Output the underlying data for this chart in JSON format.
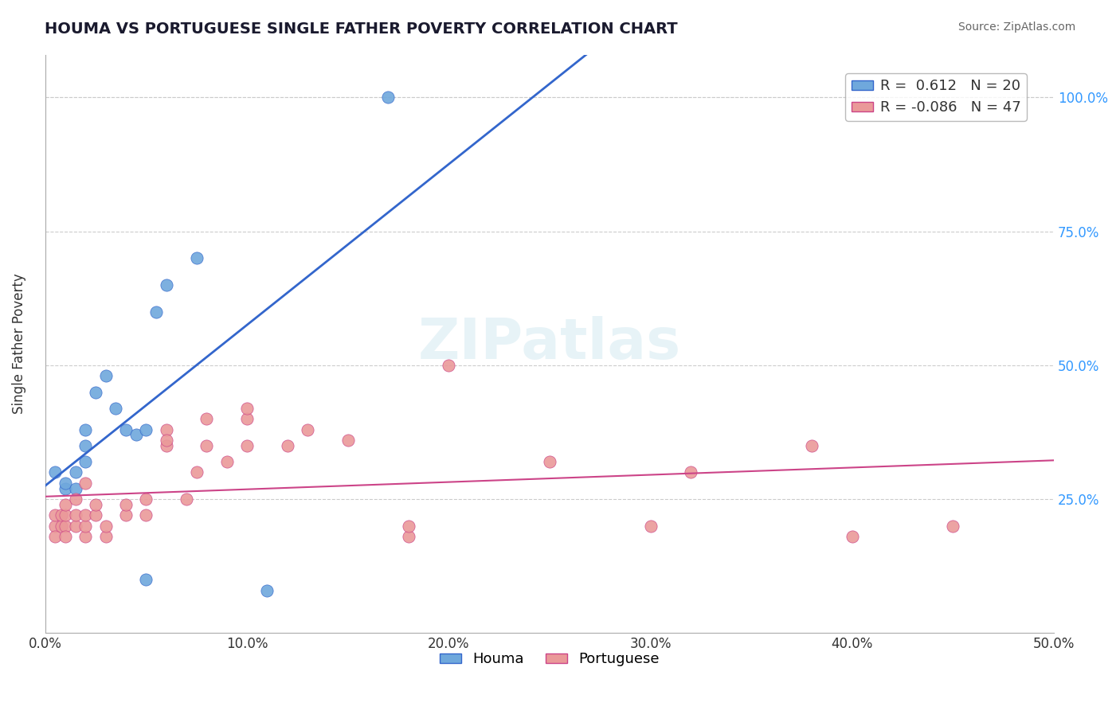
{
  "title": "HOUMA VS PORTUGUESE SINGLE FATHER POVERTY CORRELATION CHART",
  "source": "Source: ZipAtlas.com",
  "xlabel": "",
  "ylabel": "Single Father Poverty",
  "xlim": [
    0.0,
    0.5
  ],
  "ylim": [
    0.0,
    1.05
  ],
  "xtick_labels": [
    "0.0%",
    "10.0%",
    "20.0%",
    "30.0%",
    "40.0%",
    "50.0%"
  ],
  "xtick_vals": [
    0.0,
    0.1,
    0.2,
    0.3,
    0.4,
    0.5
  ],
  "ytick_labels": [
    "25.0%",
    "50.0%",
    "75.0%",
    "100.0%"
  ],
  "ytick_vals": [
    0.25,
    0.5,
    0.75,
    1.0
  ],
  "houma_r": 0.612,
  "houma_n": 20,
  "portuguese_r": -0.086,
  "portuguese_n": 47,
  "houma_color": "#6fa8dc",
  "portuguese_color": "#ea9999",
  "houma_line_color": "#3366cc",
  "portuguese_line_color": "#cc4488",
  "background_color": "#ffffff",
  "grid_color": "#cccccc",
  "watermark": "ZIPatlas",
  "houma_x": [
    0.005,
    0.01,
    0.01,
    0.015,
    0.015,
    0.02,
    0.02,
    0.02,
    0.025,
    0.03,
    0.035,
    0.04,
    0.045,
    0.05,
    0.05,
    0.055,
    0.06,
    0.075,
    0.11,
    0.17
  ],
  "houma_y": [
    0.3,
    0.27,
    0.28,
    0.27,
    0.3,
    0.32,
    0.35,
    0.38,
    0.45,
    0.48,
    0.42,
    0.38,
    0.37,
    0.38,
    0.1,
    0.6,
    0.65,
    0.7,
    0.08,
    1.0
  ],
  "portuguese_x": [
    0.005,
    0.005,
    0.005,
    0.008,
    0.008,
    0.01,
    0.01,
    0.01,
    0.01,
    0.015,
    0.015,
    0.015,
    0.02,
    0.02,
    0.02,
    0.02,
    0.025,
    0.025,
    0.03,
    0.03,
    0.04,
    0.04,
    0.05,
    0.05,
    0.06,
    0.06,
    0.06,
    0.07,
    0.075,
    0.08,
    0.08,
    0.09,
    0.1,
    0.1,
    0.1,
    0.12,
    0.13,
    0.15,
    0.18,
    0.18,
    0.2,
    0.25,
    0.3,
    0.32,
    0.38,
    0.4,
    0.45
  ],
  "portuguese_y": [
    0.2,
    0.22,
    0.18,
    0.2,
    0.22,
    0.2,
    0.18,
    0.22,
    0.24,
    0.2,
    0.22,
    0.25,
    0.18,
    0.2,
    0.22,
    0.28,
    0.22,
    0.24,
    0.18,
    0.2,
    0.22,
    0.24,
    0.22,
    0.25,
    0.35,
    0.38,
    0.36,
    0.25,
    0.3,
    0.35,
    0.4,
    0.32,
    0.35,
    0.4,
    0.42,
    0.35,
    0.38,
    0.36,
    0.18,
    0.2,
    0.5,
    0.32,
    0.2,
    0.3,
    0.35,
    0.18,
    0.2
  ]
}
